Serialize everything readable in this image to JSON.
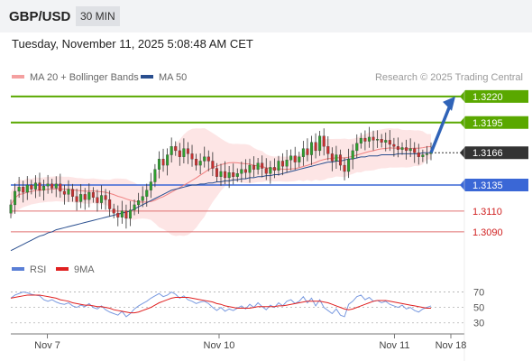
{
  "header": {
    "pair": "GBP/USD",
    "timeframe": "30 MIN"
  },
  "datetime": "Tuesday, November 11, 2025 5:08:48 AM CET",
  "legend_main": [
    {
      "label": "MA 20 + Bollinger Bands",
      "color": "#f08080"
    },
    {
      "label": "MA 50",
      "color": "#2a4f8f"
    }
  ],
  "credit": "Research © 2025 Trading Central",
  "legend_rsi": [
    {
      "label": "RSI",
      "color": "#5a7fd6"
    },
    {
      "label": "9MA",
      "color": "#e02020"
    }
  ],
  "colors": {
    "resistance": "#5aa800",
    "support_blue": "#3a67d6",
    "support_red": "#e07070",
    "bull": "#2e9e2e",
    "bear": "#c83030",
    "band": "#fde2e2",
    "arrow": "#2f63b8",
    "last": "#333333"
  },
  "chart_data": [
    {
      "type": "candlestick",
      "y_range": [
        1.307,
        1.3226
      ],
      "x_range_index": [
        0,
        115
      ],
      "x_ticks": [
        {
          "label": "Nov 7",
          "index": 10
        },
        {
          "label": "Nov 10",
          "index": 57
        },
        {
          "label": "Nov 11",
          "index": 105
        },
        {
          "label": "Nov 18",
          "index": 120
        }
      ],
      "levels": [
        {
          "label": "1.3220",
          "value": 1.322,
          "kind": "resistance"
        },
        {
          "label": "1.3195",
          "value": 1.3195,
          "kind": "resistance"
        },
        {
          "label": "1.3166",
          "value": 1.3166,
          "kind": "last"
        },
        {
          "label": "1.3135",
          "value": 1.3135,
          "kind": "support_blue"
        },
        {
          "label": "1.3110",
          "value": 1.311,
          "kind": "support_red"
        },
        {
          "label": "1.3090",
          "value": 1.309,
          "kind": "support_red"
        }
      ],
      "closes": [
        1.3116,
        1.3129,
        1.3133,
        1.3128,
        1.3135,
        1.3131,
        1.3137,
        1.313,
        1.3134,
        1.3136,
        1.3132,
        1.3136,
        1.3129,
        1.3126,
        1.3131,
        1.3124,
        1.3119,
        1.3126,
        1.3121,
        1.3128,
        1.3123,
        1.3118,
        1.3125,
        1.3121,
        1.3112,
        1.3108,
        1.3104,
        1.311,
        1.3103,
        1.3111,
        1.3116,
        1.312,
        1.3124,
        1.313,
        1.3138,
        1.315,
        1.316,
        1.3154,
        1.3164,
        1.3172,
        1.3168,
        1.3162,
        1.317,
        1.3165,
        1.316,
        1.3154,
        1.3158,
        1.3162,
        1.3158,
        1.3151,
        1.3143,
        1.3148,
        1.3142,
        1.3147,
        1.3143,
        1.3146,
        1.315,
        1.3147,
        1.3154,
        1.315,
        1.3156,
        1.3151,
        1.3146,
        1.3152,
        1.3149,
        1.3158,
        1.3153,
        1.3159,
        1.3163,
        1.3157,
        1.3162,
        1.317,
        1.3164,
        1.3176,
        1.3168,
        1.3182,
        1.3172,
        1.3165,
        1.3158,
        1.3164,
        1.3154,
        1.3148,
        1.316,
        1.3168,
        1.3175,
        1.318,
        1.3177,
        1.3181,
        1.3178,
        1.3179,
        1.3176,
        1.3178,
        1.3174,
        1.3172,
        1.3169,
        1.3171,
        1.3168,
        1.317,
        1.3166,
        1.3162,
        1.3164,
        1.3165,
        1.3166
      ],
      "ma50": [
        1.3072,
        1.3074,
        1.3076,
        1.3078,
        1.308,
        1.3082,
        1.3084,
        1.3086,
        1.3087,
        1.3089,
        1.309,
        1.3092,
        1.3093,
        1.3094,
        1.3095,
        1.3096,
        1.3097,
        1.3098,
        1.3099,
        1.31,
        1.3101,
        1.3102,
        1.3103,
        1.3104,
        1.3105,
        1.3106,
        1.3107,
        1.3108,
        1.3109,
        1.311,
        1.3112,
        1.3114,
        1.3116,
        1.3118,
        1.312,
        1.3122,
        1.3124,
        1.3126,
        1.3128,
        1.313,
        1.3131,
        1.3132,
        1.3133,
        1.3134,
        1.3135,
        1.3135,
        1.3136,
        1.3136,
        1.3137,
        1.3137,
        1.3138,
        1.3138,
        1.3139,
        1.3139,
        1.314,
        1.314,
        1.3141,
        1.3141,
        1.3142,
        1.3142,
        1.3143,
        1.3143,
        1.3144,
        1.3144,
        1.3145,
        1.3145,
        1.3146,
        1.3147,
        1.3148,
        1.3149,
        1.315,
        1.3151,
        1.3152,
        1.3153,
        1.3154,
        1.3155,
        1.3156,
        1.3157,
        1.3157,
        1.3158,
        1.3158,
        1.3159,
        1.316,
        1.316,
        1.3161,
        1.3162,
        1.3162,
        1.3163,
        1.3163,
        1.3163,
        1.3164,
        1.3164,
        1.3164,
        1.3164,
        1.3165,
        1.3165,
        1.3165,
        1.3165,
        1.3165,
        1.3165,
        1.3166,
        1.3166,
        1.3166
      ],
      "forecast_from": {
        "index": 102,
        "value": 1.3166
      },
      "forecast_to": {
        "index": 111,
        "value": 1.322
      }
    },
    {
      "type": "line",
      "title": "RSI",
      "y_range": [
        25,
        80
      ],
      "y_ticks": [
        70,
        50,
        30
      ],
      "rsi": [
        62,
        66,
        68,
        70,
        69,
        67,
        66,
        65,
        60,
        58,
        60,
        57,
        55,
        54,
        56,
        52,
        50,
        53,
        51,
        55,
        50,
        48,
        52,
        47,
        44,
        42,
        40,
        45,
        38,
        42,
        48,
        52,
        55,
        58,
        62,
        65,
        68,
        64,
        66,
        70,
        67,
        62,
        65,
        60,
        58,
        55,
        57,
        58,
        55,
        50,
        46,
        50,
        45,
        48,
        46,
        49,
        52,
        48,
        54,
        50,
        56,
        51,
        47,
        53,
        50,
        56,
        52,
        58,
        60,
        55,
        58,
        64,
        56,
        62,
        52,
        60,
        50,
        46,
        42,
        48,
        40,
        38,
        54,
        58,
        64,
        66,
        60,
        63,
        58,
        59,
        56,
        58,
        54,
        52,
        50,
        53,
        48,
        50,
        46,
        44,
        48,
        50,
        52
      ],
      "ma9": [
        62,
        63,
        64,
        65,
        66,
        66,
        66,
        66,
        65,
        64,
        63,
        62,
        60,
        59,
        58,
        56,
        55,
        54,
        53,
        53,
        52,
        51,
        51,
        50,
        49,
        47,
        46,
        45,
        44,
        43,
        43,
        44,
        46,
        48,
        50,
        53,
        56,
        58,
        60,
        62,
        63,
        63,
        63,
        63,
        62,
        61,
        60,
        59,
        58,
        57,
        55,
        54,
        52,
        51,
        50,
        49,
        49,
        49,
        49,
        50,
        51,
        51,
        51,
        51,
        51,
        52,
        52,
        53,
        54,
        55,
        56,
        57,
        58,
        58,
        58,
        58,
        57,
        56,
        54,
        52,
        50,
        48,
        47,
        48,
        50,
        52,
        54,
        56,
        58,
        59,
        59,
        59,
        58,
        57,
        56,
        55,
        54,
        53,
        52,
        51,
        50,
        49,
        49
      ]
    }
  ]
}
